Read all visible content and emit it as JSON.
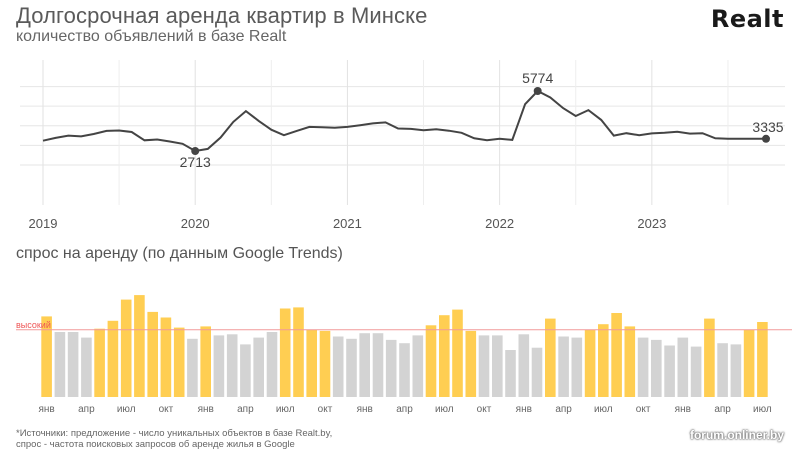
{
  "header": {
    "title": "Долгосрочная аренда квартир в Минске",
    "subtitle": "количество объявлений в базе Realt",
    "logo": "Realt"
  },
  "colors": {
    "line": "#444444",
    "bar_high": "#ffce52",
    "bar_low": "#d3d3d3",
    "ref_line": "#f29a9a"
  },
  "section2": {
    "title": "спрос на аренду (по данным Google Trends)"
  },
  "footnote": {
    "line1": "*Источники: предложение - число уникальных объектов в базе Realt.by,",
    "line2": "спрос - частота поисковых запросов об аренде жилья в Google"
  },
  "watermark": "forum.onliner.by",
  "chart_data": [
    {
      "type": "line",
      "xlabel": "",
      "ylabel": "",
      "xlim": [
        2019.0,
        2023.75
      ],
      "x_ticks": [
        "2019",
        "2020",
        "2021",
        "2022",
        "2023"
      ],
      "grid": true,
      "annotations": [
        {
          "x": 2020.0,
          "y": 2713,
          "label": "2713"
        },
        {
          "x": 2022.25,
          "y": 5774,
          "label": "5774"
        },
        {
          "x": 2023.75,
          "y": 3335,
          "label": "3335"
        }
      ],
      "series": [
        {
          "x": [
            2019.0,
            2019.083,
            2019.167,
            2019.25,
            2019.333,
            2019.417,
            2019.5,
            2019.583,
            2019.667,
            2019.75,
            2019.833,
            2019.917,
            2020.0,
            2020.083,
            2020.167,
            2020.25,
            2020.333,
            2020.417,
            2020.5,
            2020.583,
            2020.667,
            2020.75,
            2020.833,
            2020.917,
            2021.0,
            2021.083,
            2021.167,
            2021.25,
            2021.333,
            2021.417,
            2021.5,
            2021.583,
            2021.667,
            2021.75,
            2021.833,
            2021.917,
            2022.0,
            2022.083,
            2022.167,
            2022.25,
            2022.333,
            2022.417,
            2022.5,
            2022.583,
            2022.667,
            2022.75,
            2022.833,
            2022.917,
            2023.0,
            2023.083,
            2023.167,
            2023.25,
            2023.333,
            2023.417,
            2023.5,
            2023.583,
            2023.667,
            2023.75
          ],
          "y": [
            3240,
            3380,
            3500,
            3460,
            3580,
            3740,
            3760,
            3680,
            3260,
            3300,
            3200,
            3080,
            2713,
            2820,
            3400,
            4200,
            4750,
            4250,
            3800,
            3520,
            3740,
            3940,
            3920,
            3900,
            3940,
            4030,
            4120,
            4170,
            3860,
            3840,
            3770,
            3820,
            3750,
            3640,
            3360,
            3260,
            3340,
            3280,
            5100,
            5774,
            5440,
            4900,
            4500,
            4800,
            4300,
            3500,
            3620,
            3520,
            3610,
            3640,
            3690,
            3600,
            3620,
            3360,
            3335,
            3335,
            3335,
            3335
          ]
        }
      ]
    },
    {
      "type": "bar",
      "title": "спрос на аренду (по данным Google Trends)",
      "reference_line": {
        "label": "высокий",
        "value": 60
      },
      "ylim": [
        0,
        100
      ],
      "tick_labels": [
        "янв",
        "апр",
        "июл",
        "окт",
        "янв",
        "апр",
        "июл",
        "окт",
        "янв",
        "апр",
        "июл",
        "окт",
        "янв",
        "апр",
        "июл",
        "окт",
        "янв",
        "апр",
        "июл"
      ],
      "tick_indices": [
        0,
        3,
        6,
        9,
        12,
        15,
        18,
        21,
        24,
        27,
        30,
        33,
        36,
        39,
        42,
        45,
        48,
        51,
        54
      ],
      "values": [
        72,
        58,
        58,
        53,
        61,
        68,
        87,
        91,
        76,
        71,
        62,
        52,
        63,
        55,
        56,
        47,
        53,
        58,
        79,
        80,
        60,
        59,
        54,
        52,
        57,
        57,
        51,
        48,
        55,
        64,
        73,
        78,
        59,
        55,
        55,
        42,
        56,
        44,
        70,
        54,
        53,
        60,
        65,
        75,
        63,
        53,
        51,
        46,
        53,
        45,
        70,
        48,
        47,
        60,
        67
      ],
      "high": [
        true,
        false,
        false,
        false,
        true,
        true,
        true,
        true,
        true,
        true,
        true,
        false,
        true,
        false,
        false,
        false,
        false,
        false,
        true,
        true,
        true,
        true,
        false,
        false,
        false,
        false,
        false,
        false,
        false,
        true,
        true,
        true,
        true,
        false,
        false,
        false,
        false,
        false,
        true,
        false,
        false,
        true,
        true,
        true,
        true,
        false,
        false,
        false,
        false,
        false,
        true,
        false,
        false,
        true,
        true
      ]
    }
  ]
}
